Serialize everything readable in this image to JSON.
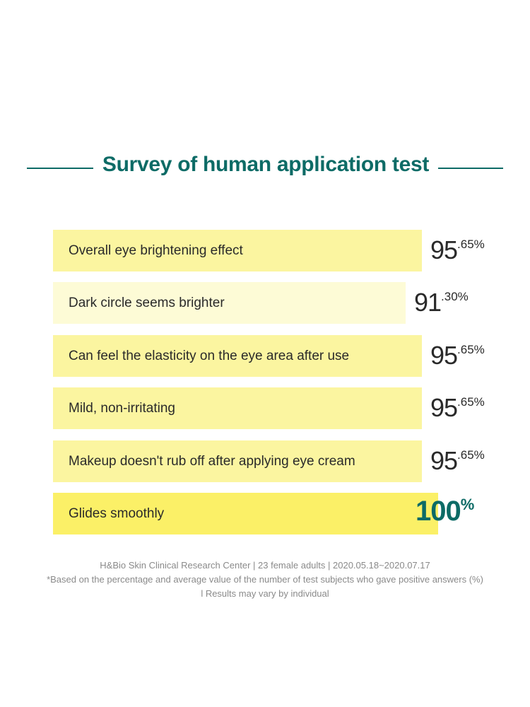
{
  "title": "Survey of human application test",
  "colors": {
    "accent": "#0d6b66",
    "bar_default": "#fbf5a0",
    "bar_light": "#fdfbd6",
    "bar_highlight": "#fbf067"
  },
  "chart_data": {
    "type": "bar",
    "orientation": "horizontal",
    "title": "Survey of human application test",
    "categories": [
      "Overall eye brightening effect",
      "Dark circle seems brighter",
      "Can feel the elasticity on the eye area after use",
      "Mild, non-irritating",
      "Makeup doesn't rub off after applying eye cream",
      "Glides smoothly"
    ],
    "values": [
      95.65,
      91.3,
      95.65,
      95.65,
      95.65,
      100
    ],
    "value_labels": [
      {
        "int": "95",
        "dec": ".65%"
      },
      {
        "int": "91",
        "dec": ".30%"
      },
      {
        "int": "95",
        "dec": ".65%"
      },
      {
        "int": "95",
        "dec": ".65%"
      },
      {
        "int": "95",
        "dec": ".65%"
      },
      {
        "int": "100",
        "dec": "%"
      }
    ],
    "xlim": [
      0,
      100
    ],
    "grid": false
  },
  "footnotes": [
    "H&Bio Skin Clinical Research Center | 23 female adults | 2020.05.18~2020.07.17",
    "*Based on the percentage and average value of the number of test subjects who gave positive answers (%)",
    "l Results may vary by individual"
  ]
}
